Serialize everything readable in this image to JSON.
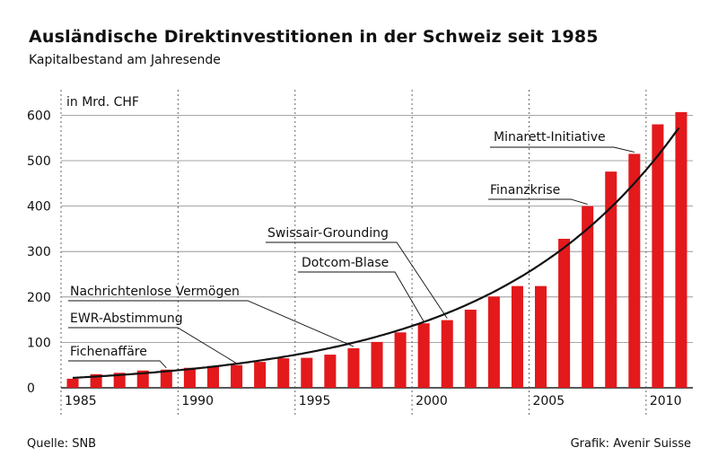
{
  "header": {
    "title": "Ausländische Direktinvestitionen in der Schweiz seit 1985",
    "subtitle": "Kapitalbestand am Jahresende"
  },
  "footer": {
    "source": "Quelle: SNB",
    "credit": "Grafik: Avenir Suisse"
  },
  "colors": {
    "bar": "#e3191c",
    "trend": "#111111",
    "grid": "#888888"
  },
  "chart_data": {
    "type": "bar",
    "unit_label": "in Mrd. CHF",
    "x": [
      1985,
      1986,
      1987,
      1988,
      1989,
      1990,
      1991,
      1992,
      1993,
      1994,
      1995,
      1996,
      1997,
      1998,
      1999,
      2000,
      2001,
      2002,
      2003,
      2004,
      2005,
      2006,
      2007,
      2008,
      2009,
      2010,
      2011
    ],
    "values": [
      20,
      30,
      33,
      38,
      40,
      44,
      48,
      50,
      57,
      65,
      66,
      73,
      87,
      101,
      122,
      142,
      149,
      172,
      201,
      224,
      224,
      328,
      400,
      476,
      515,
      580,
      607
    ],
    "xticks": [
      1985,
      1990,
      1995,
      2000,
      2005,
      2010
    ],
    "yticks": [
      0,
      100,
      200,
      300,
      400,
      500,
      600
    ],
    "ylim": [
      0,
      620
    ],
    "grid": "dotted vertical at tick years",
    "trend": "exponential curve",
    "annotations": [
      {
        "label": "Fichenaffäre",
        "year": 1989,
        "value": 40
      },
      {
        "label": "EWR-Abstimmung",
        "year": 1992,
        "value": 50
      },
      {
        "label": "Nachrichtenlose Vermögen",
        "year": 1997,
        "value": 87
      },
      {
        "label": "Dotcom-Blase",
        "year": 2000,
        "value": 142
      },
      {
        "label": "Swissair-Grounding",
        "year": 2001,
        "value": 149
      },
      {
        "label": "Finanzkrise",
        "year": 2007,
        "value": 400
      },
      {
        "label": "Minarett-Initiative",
        "year": 2009,
        "value": 515
      }
    ]
  }
}
